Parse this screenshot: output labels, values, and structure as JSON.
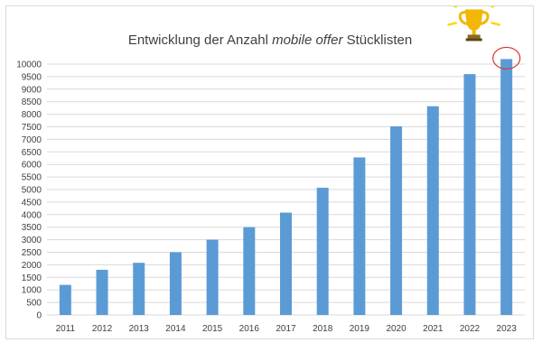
{
  "chart_data": {
    "type": "bar",
    "title": {
      "part1": "Entwicklung der Anzahl ",
      "part2": "mobile offer",
      "part3": " Stücklisten"
    },
    "xlabel": "",
    "ylabel": "",
    "categories": [
      "2011",
      "2012",
      "2013",
      "2014",
      "2015",
      "2016",
      "2017",
      "2018",
      "2019",
      "2020",
      "2021",
      "2022",
      "2023"
    ],
    "values": [
      1200,
      1800,
      2080,
      2500,
      3000,
      3500,
      4080,
      5070,
      6280,
      7520,
      8320,
      9600,
      10200
    ],
    "ylim": [
      0,
      10000
    ],
    "yticks": [
      0,
      500,
      1000,
      1500,
      2000,
      2500,
      3000,
      3500,
      4000,
      4500,
      5000,
      5500,
      6000,
      6500,
      7000,
      7500,
      8000,
      8500,
      9000,
      9500,
      10000
    ],
    "grid": true,
    "legend": "none",
    "colors": {
      "bar": "#5b9bd5",
      "grid": "#d9d9d9",
      "text": "#404040",
      "highlight": "#e03030",
      "trophy": "#f2b705",
      "sparkle": "#ffd700"
    },
    "annotations": {
      "highlight_category": "2023",
      "icon": "trophy-icon"
    }
  }
}
